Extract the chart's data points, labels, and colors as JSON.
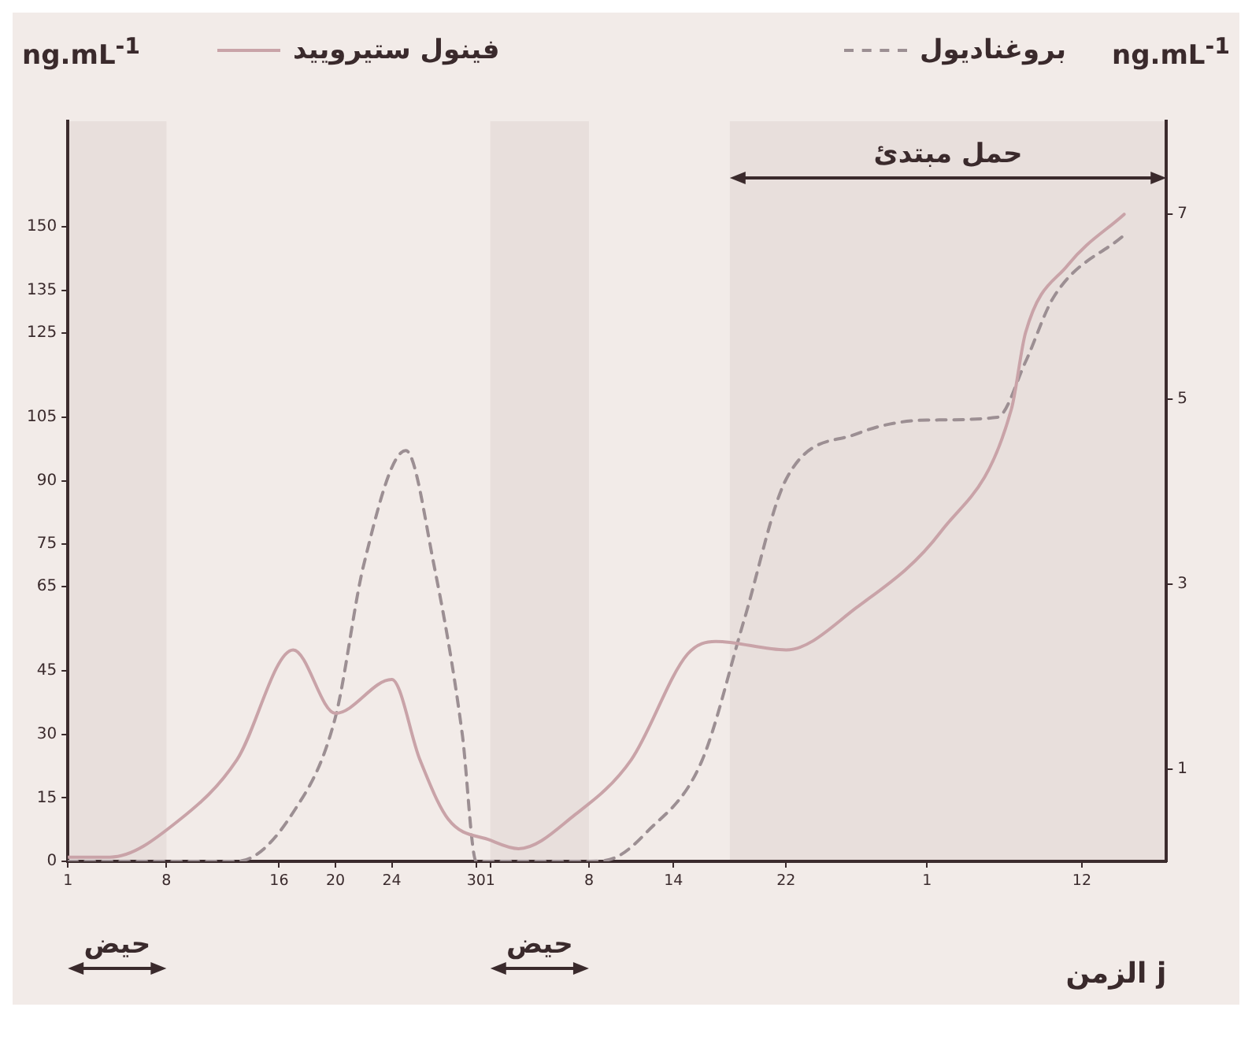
{
  "chart_data": {
    "type": "line",
    "ylabel": "ng.mL$^{-1}$",
    "y2label": "ng.mL$^{-1}$",
    "xlabel": "الزمن j",
    "legend": "top",
    "series": [
      {
        "name": "فينول ستيروييد",
        "color": "#c9a3a8",
        "line_style": "solid",
        "x": [
          "--04-01",
          "--04-04",
          "--04-09",
          "--04-13",
          "--04-17",
          "--04-20",
          "--04-24",
          "--04-26",
          "--04-28",
          "--05-01",
          "--05-03",
          "--05-07",
          "--05-11",
          "--05-15",
          "--05-17",
          "--05-22",
          "--05-27",
          "--06-02",
          "--06-07",
          "--06-08",
          "--06-11",
          "--06-15"
        ],
        "values": [
          1,
          1,
          10,
          24,
          50,
          35,
          43,
          24,
          10,
          5,
          3,
          11,
          24,
          49,
          52,
          50,
          60,
          78,
          107,
          125,
          141,
          153
        ]
      },
      {
        "name": "بروغناديول",
        "color": "#9c8f93",
        "line_style": "dashed",
        "axis": "y2",
        "x": [
          "--04-01",
          "--04-13",
          "--04-17",
          "--04-20",
          "--04-22",
          "--04-25",
          "--04-27",
          "--04-29",
          "--04-30",
          "--05-08",
          "--05-10",
          "--05-12",
          "--05-16",
          "--05-19",
          "--05-22",
          "--05-27",
          "--06-01",
          "--06-06",
          "--06-08",
          "--06-10",
          "--06-15"
        ],
        "values": [
          0,
          0,
          0.53,
          1.56,
          3.2,
          4.44,
          3.2,
          1.38,
          0,
          0,
          0.05,
          0.3,
          1.08,
          2.6,
          4.13,
          4.62,
          4.77,
          4.8,
          5.4,
          6.1,
          6.77
        ]
      }
    ],
    "xlim": [
      "--04-01",
      "--06-18"
    ],
    "xticks": [
      {
        "value": "--04-01",
        "label": "1"
      },
      {
        "value": "--04-08",
        "label": "8"
      },
      {
        "value": "--04-16",
        "label": "16"
      },
      {
        "value": "--04-20",
        "label": "20"
      },
      {
        "value": "--04-24",
        "label": "24"
      },
      {
        "value": "--04-30",
        "label": "30"
      },
      {
        "value": "--05-01",
        "label": "1"
      },
      {
        "value": "--05-08",
        "label": "8"
      },
      {
        "value": "--05-14",
        "label": "14"
      },
      {
        "value": "--05-22",
        "label": "22"
      },
      {
        "value": "--06-01",
        "label": "1"
      },
      {
        "value": "--06-12",
        "label": "12"
      }
    ],
    "ylim": [
      0,
      175
    ],
    "yticks": [
      0,
      15,
      30,
      45,
      65,
      75,
      90,
      105,
      125,
      135,
      150
    ],
    "y2lim": [
      0,
      8
    ],
    "y2ticks": [
      1,
      3,
      5,
      7
    ],
    "bands": [
      {
        "axis": "x",
        "from": "--05-18",
        "to": "--06-18",
        "label": "حمل مبتدئ"
      },
      {
        "axis": "x",
        "from": "--04-01",
        "to": "--04-08",
        "label": "حيض"
      },
      {
        "axis": "x",
        "from": "--05-01",
        "to": "--05-08",
        "label": "حيض"
      }
    ]
  }
}
